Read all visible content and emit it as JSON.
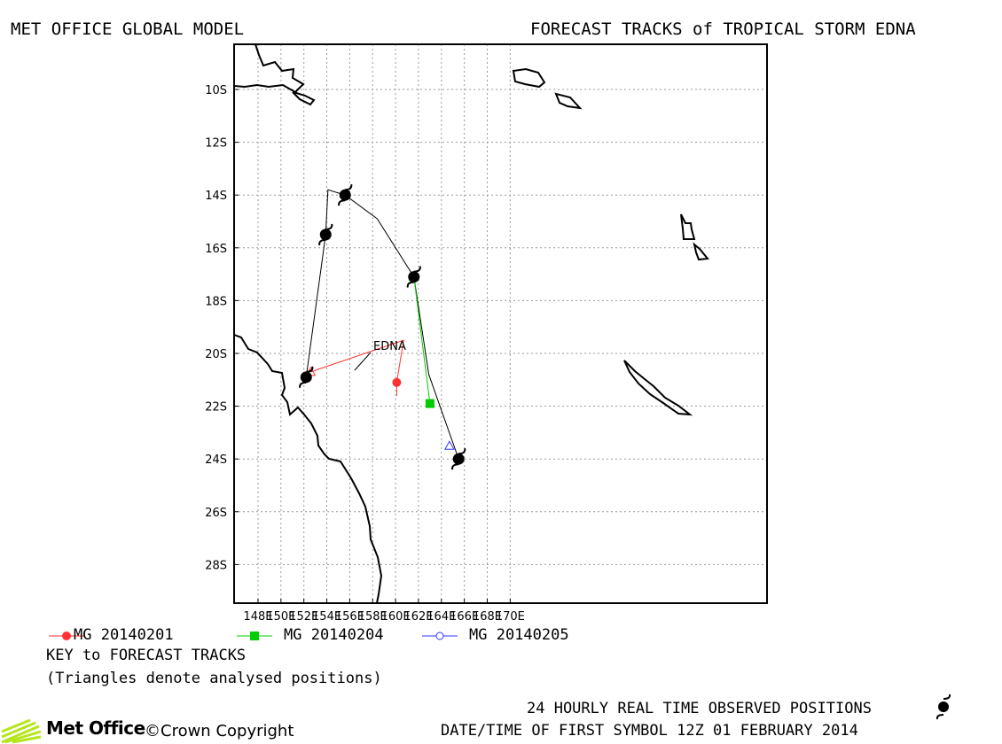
{
  "header": {
    "left_title": "MET OFFICE GLOBAL MODEL",
    "right_title": "FORECAST TRACKS of TROPICAL STORM EDNA"
  },
  "map": {
    "lon_ticks": [
      "148E",
      "150E",
      "152E",
      "154E",
      "156E",
      "158E",
      "160E",
      "162E",
      "164E",
      "166E",
      "168E",
      "170E"
    ],
    "lat_ticks": [
      "10S",
      "12S",
      "14S",
      "16S",
      "18S",
      "20S",
      "22S",
      "24S",
      "26S",
      "28S"
    ],
    "storm_label": "EDNA",
    "observed_positions": [
      {
        "lon": 152.2,
        "lat": -20.9
      },
      {
        "lon": 153.9,
        "lat": -15.5
      },
      {
        "lon": 155.6,
        "lat": -14.0
      },
      {
        "lon": 161.6,
        "lat": -17.1
      },
      {
        "lon": 165.5,
        "lat": -24.0
      }
    ],
    "forecast_tracks": [
      {
        "name": "MG 20140201",
        "color": "#ff3333",
        "marker": "filled-circle",
        "analysed": {
          "lon": 152.6,
          "lat": -20.7
        },
        "points": [
          {
            "lon": 160.7,
            "lat": -19.5
          },
          {
            "lon": 160.1,
            "lat": -21.1
          }
        ]
      },
      {
        "name": "MG 20140204",
        "color": "#00cc00",
        "marker": "filled-square",
        "analysed": {
          "lon": 161.6,
          "lat": -17.1
        },
        "points": [
          {
            "lon": 163.0,
            "lat": -21.9
          }
        ]
      },
      {
        "name": "MG 20140205",
        "color": "#3333ff",
        "marker": "open-circle",
        "analysed": {
          "lon": 164.7,
          "lat": -23.5
        },
        "points": []
      }
    ]
  },
  "legend": {
    "entries": [
      {
        "label": "MG 20140201",
        "color": "#ff3333",
        "marker": "filled-circle"
      },
      {
        "label": "MG 20140204",
        "color": "#00cc00",
        "marker": "filled-square"
      },
      {
        "label": "MG 20140205",
        "color": "#3333ff",
        "marker": "open-circle"
      }
    ],
    "title": "KEY to FORECAST TRACKS",
    "note": "(Triangles denote analysed positions)"
  },
  "footer": {
    "observed_text": "24 HOURLY REAL TIME OBSERVED POSITIONS",
    "datetime_text": "DATE/TIME OF FIRST SYMBOL 12Z 01 FEBRUARY 2014",
    "logo_text": "Met Office",
    "copyright_text": "©Crown Copyright",
    "logo_color": "#b5e61d"
  }
}
